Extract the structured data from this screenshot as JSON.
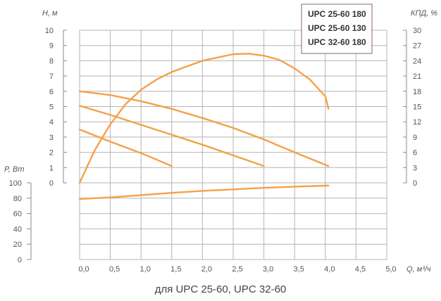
{
  "caption": "для UPC 25-60, UPC 32-60",
  "chart_data": {
    "type": "line",
    "curve_color": "#f5a04a",
    "grid": true,
    "legend_placement": "top-right",
    "legend": [
      "UPC 25-60 180",
      "UPC 25-60 130",
      "UPC 32-60 180"
    ],
    "x": {
      "label": "Q, м³/ч",
      "range": [
        0,
        5
      ],
      "ticks": [
        "0,0",
        "0,5",
        "1,0",
        "1,5",
        "2,0",
        "2,5",
        "3,0",
        "3,5",
        "4,0",
        "4,5",
        "5,0"
      ]
    },
    "y_head": {
      "label": "H, м",
      "range": [
        0,
        10
      ],
      "ticks": [
        "0",
        "1",
        "2",
        "3",
        "4",
        "5",
        "6",
        "7",
        "8",
        "9",
        "10"
      ]
    },
    "y_eff": {
      "label": "КПД, %",
      "range": [
        0,
        30
      ],
      "ticks": [
        "0",
        "3",
        "6",
        "9",
        "12",
        "15",
        "18",
        "21",
        "24",
        "27",
        "30"
      ]
    },
    "y_power": {
      "label": "P, Вт",
      "range": [
        0,
        100
      ],
      "ticks": [
        "0",
        "20",
        "40",
        "60",
        "80",
        "100"
      ]
    },
    "head_series": [
      {
        "name": "UPC 32-60 180",
        "points": [
          [
            0,
            6.0
          ],
          [
            0.5,
            5.75
          ],
          [
            1.0,
            5.35
          ],
          [
            1.5,
            4.85
          ],
          [
            2.0,
            4.25
          ],
          [
            2.5,
            3.6
          ],
          [
            3.0,
            2.85
          ],
          [
            3.5,
            2.0
          ],
          [
            4.05,
            1.1
          ]
        ]
      },
      {
        "name": "UPC 25-60 130",
        "points": [
          [
            0,
            5.05
          ],
          [
            0.5,
            4.45
          ],
          [
            1.0,
            3.8
          ],
          [
            1.5,
            3.15
          ],
          [
            2.0,
            2.5
          ],
          [
            2.5,
            1.8
          ],
          [
            3.0,
            1.1
          ]
        ]
      },
      {
        "name": "UPC 25-60 180",
        "points": [
          [
            0,
            3.5
          ],
          [
            0.5,
            2.7
          ],
          [
            1.0,
            1.95
          ],
          [
            1.5,
            1.1
          ]
        ]
      }
    ],
    "efficiency_series": [
      {
        "points": [
          [
            0,
            0
          ],
          [
            0.25,
            6.5
          ],
          [
            0.5,
            11.5
          ],
          [
            0.75,
            15.5
          ],
          [
            1.0,
            18.3
          ],
          [
            1.25,
            20.3
          ],
          [
            1.5,
            21.8
          ],
          [
            2.0,
            24.0
          ],
          [
            2.5,
            25.3
          ],
          [
            2.75,
            25.4
          ],
          [
            3.0,
            25.0
          ],
          [
            3.25,
            24.2
          ],
          [
            3.5,
            22.5
          ],
          [
            3.75,
            20.3
          ],
          [
            4.0,
            17.0
          ],
          [
            4.05,
            14.6
          ]
        ]
      }
    ],
    "power_series": [
      {
        "points": [
          [
            0,
            79
          ],
          [
            0.5,
            81
          ],
          [
            1.0,
            84
          ],
          [
            1.5,
            87
          ],
          [
            2.0,
            89.5
          ],
          [
            2.5,
            91.5
          ],
          [
            3.0,
            93.5
          ],
          [
            3.5,
            95
          ],
          [
            4.0,
            96.3
          ],
          [
            4.05,
            96.5
          ]
        ]
      }
    ]
  }
}
